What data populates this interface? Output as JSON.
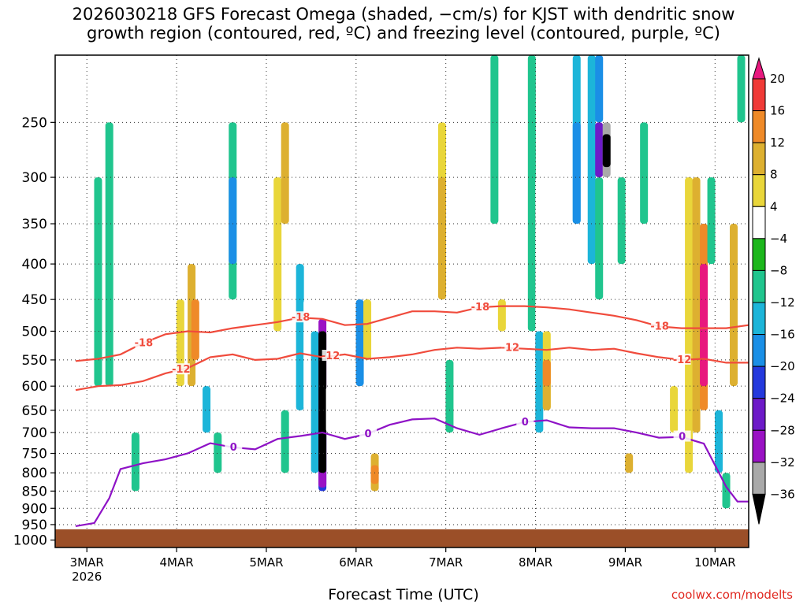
{
  "chart_data": {
    "type": "heatmap",
    "title_line1": "2026030218 GFS Forecast Omega (shaded, −cm/s) for KJST with dendritic snow",
    "title_line2": "growth region (contoured, red, ºC) and freezing level (contoured, purple, ºC)",
    "xlabel": "Forecast Time (UTC)",
    "credit": "coolwx.com/modelts",
    "y_ticks": [
      250,
      300,
      350,
      400,
      450,
      500,
      550,
      600,
      650,
      700,
      750,
      800,
      850,
      900,
      950,
      1000
    ],
    "y_range": [
      200,
      1000
    ],
    "x_ticks": [
      "3MAR",
      "4MAR",
      "5MAR",
      "6MAR",
      "7MAR",
      "8MAR",
      "9MAR",
      "10MAR"
    ],
    "x_year": "2026",
    "x_range_hours": [
      0,
      180
    ],
    "colorbar": {
      "labels": [
        "20",
        "16",
        "12",
        "8",
        "4",
        "−4",
        "−8",
        "−12",
        "−16",
        "−20",
        "−24",
        "−28",
        "−32",
        "−36"
      ],
      "colors": [
        "#e8187e",
        "#f03a37",
        "#ef8a28",
        "#ddb030",
        "#e9d63a",
        "#ffffff",
        "#1cb71c",
        "#20c58e",
        "#1cb5d9",
        "#1a8fe6",
        "#2439dd",
        "#6d1ac8",
        "#9a12c4",
        "#a9a9a9",
        "#000000"
      ]
    },
    "ground_pressure": 950,
    "contours": {
      "dgz_minus12_label": "-12",
      "dgz_minus18_label": "-18",
      "freezing_label": "0",
      "minus12": [
        [
          0,
          608
        ],
        [
          6,
          600
        ],
        [
          12,
          598
        ],
        [
          18,
          590
        ],
        [
          24,
          575
        ],
        [
          30,
          565
        ],
        [
          36,
          545
        ],
        [
          42,
          540
        ],
        [
          48,
          550
        ],
        [
          54,
          548
        ],
        [
          60,
          538
        ],
        [
          66,
          545
        ],
        [
          72,
          540
        ],
        [
          78,
          548
        ],
        [
          84,
          545
        ],
        [
          90,
          540
        ],
        [
          96,
          532
        ],
        [
          102,
          528
        ],
        [
          108,
          530
        ],
        [
          114,
          528
        ],
        [
          120,
          530
        ],
        [
          126,
          532
        ],
        [
          132,
          528
        ],
        [
          138,
          532
        ],
        [
          144,
          530
        ],
        [
          150,
          538
        ],
        [
          156,
          545
        ],
        [
          162,
          550
        ],
        [
          168,
          548
        ],
        [
          174,
          555
        ],
        [
          180,
          555
        ]
      ],
      "minus18": [
        [
          0,
          552
        ],
        [
          6,
          548
        ],
        [
          12,
          540
        ],
        [
          18,
          520
        ],
        [
          24,
          505
        ],
        [
          30,
          500
        ],
        [
          36,
          502
        ],
        [
          42,
          495
        ],
        [
          48,
          490
        ],
        [
          54,
          485
        ],
        [
          60,
          478
        ],
        [
          66,
          480
        ],
        [
          72,
          490
        ],
        [
          78,
          488
        ],
        [
          84,
          478
        ],
        [
          90,
          468
        ],
        [
          96,
          468
        ],
        [
          102,
          470
        ],
        [
          108,
          462
        ],
        [
          114,
          460
        ],
        [
          120,
          460
        ],
        [
          126,
          462
        ],
        [
          132,
          465
        ],
        [
          138,
          470
        ],
        [
          144,
          475
        ],
        [
          150,
          482
        ],
        [
          156,
          492
        ],
        [
          162,
          495
        ],
        [
          168,
          495
        ],
        [
          174,
          495
        ],
        [
          180,
          490
        ]
      ],
      "freezing": [
        [
          0,
          955
        ],
        [
          5,
          945
        ],
        [
          9,
          870
        ],
        [
          12,
          790
        ],
        [
          18,
          775
        ],
        [
          24,
          765
        ],
        [
          30,
          750
        ],
        [
          36,
          725
        ],
        [
          42,
          735
        ],
        [
          48,
          740
        ],
        [
          54,
          715
        ],
        [
          60,
          708
        ],
        [
          66,
          700
        ],
        [
          72,
          715
        ],
        [
          78,
          703
        ],
        [
          84,
          682
        ],
        [
          90,
          670
        ],
        [
          96,
          668
        ],
        [
          102,
          690
        ],
        [
          108,
          705
        ],
        [
          114,
          690
        ],
        [
          120,
          676
        ],
        [
          126,
          672
        ],
        [
          132,
          688
        ],
        [
          138,
          690
        ],
        [
          144,
          690
        ],
        [
          150,
          700
        ],
        [
          156,
          712
        ],
        [
          162,
          710
        ],
        [
          168,
          726
        ],
        [
          174,
          838
        ],
        [
          177,
          880
        ],
        [
          180,
          880
        ]
      ]
    },
    "omega_cells": [
      [
        6,
        300,
        600,
        -8
      ],
      [
        9,
        250,
        600,
        -8
      ],
      [
        12,
        850,
        900,
        4
      ],
      [
        16,
        700,
        850,
        -8
      ],
      [
        17,
        850,
        900,
        4
      ],
      [
        28,
        450,
        600,
        8
      ],
      [
        28,
        300,
        450,
        4
      ],
      [
        31,
        400,
        600,
        12
      ],
      [
        32,
        450,
        550,
        16
      ],
      [
        35,
        600,
        700,
        -12
      ],
      [
        38,
        700,
        800,
        -8
      ],
      [
        42,
        250,
        450,
        -8
      ],
      [
        42,
        300,
        400,
        -16
      ],
      [
        46,
        250,
        450,
        4
      ],
      [
        50,
        350,
        500,
        4
      ],
      [
        54,
        300,
        500,
        8
      ],
      [
        56,
        250,
        350,
        12
      ],
      [
        56,
        650,
        800,
        -8
      ],
      [
        60,
        400,
        650,
        -12
      ],
      [
        62,
        450,
        650,
        4
      ],
      [
        64,
        500,
        800,
        -12
      ],
      [
        66,
        600,
        850,
        -20
      ],
      [
        66,
        480,
        840,
        -28
      ],
      [
        66,
        500,
        800,
        -36
      ],
      [
        68,
        600,
        700,
        4
      ],
      [
        74,
        300,
        500,
        4
      ],
      [
        76,
        450,
        600,
        -16
      ],
      [
        78,
        450,
        550,
        8
      ],
      [
        80,
        700,
        850,
        4
      ],
      [
        80,
        750,
        850,
        12
      ],
      [
        80,
        780,
        830,
        16
      ],
      [
        92,
        250,
        550,
        4
      ],
      [
        96,
        200,
        550,
        4
      ],
      [
        98,
        250,
        450,
        8
      ],
      [
        98,
        300,
        450,
        12
      ],
      [
        100,
        550,
        700,
        -8
      ],
      [
        102,
        850,
        900,
        4
      ],
      [
        104,
        250,
        400,
        4
      ],
      [
        112,
        200,
        350,
        -8
      ],
      [
        114,
        450,
        500,
        8
      ],
      [
        120,
        250,
        450,
        4
      ],
      [
        122,
        200,
        500,
        -8
      ],
      [
        124,
        300,
        550,
        4
      ],
      [
        124,
        500,
        700,
        -12
      ],
      [
        126,
        500,
        650,
        8
      ],
      [
        126,
        550,
        650,
        12
      ],
      [
        126,
        550,
        600,
        16
      ],
      [
        130,
        300,
        500,
        4
      ],
      [
        134,
        200,
        350,
        -12
      ],
      [
        134,
        250,
        350,
        -16
      ],
      [
        138,
        200,
        400,
        -12
      ],
      [
        140,
        300,
        450,
        -8
      ],
      [
        140,
        200,
        250,
        -16
      ],
      [
        140,
        250,
        300,
        -24
      ],
      [
        142,
        250,
        300,
        -32
      ],
      [
        142,
        260,
        290,
        -36
      ],
      [
        146,
        300,
        400,
        -8
      ],
      [
        148,
        750,
        800,
        12
      ],
      [
        152,
        250,
        350,
        -8
      ],
      [
        158,
        300,
        700,
        4
      ],
      [
        160,
        600,
        700,
        8
      ],
      [
        164,
        300,
        800,
        8
      ],
      [
        166,
        300,
        700,
        12
      ],
      [
        168,
        350,
        650,
        16
      ],
      [
        168,
        400,
        600,
        20
      ],
      [
        170,
        300,
        400,
        -8
      ],
      [
        172,
        650,
        800,
        -12
      ],
      [
        174,
        800,
        900,
        -8
      ],
      [
        176,
        350,
        600,
        12
      ],
      [
        178,
        200,
        250,
        -8
      ]
    ]
  }
}
